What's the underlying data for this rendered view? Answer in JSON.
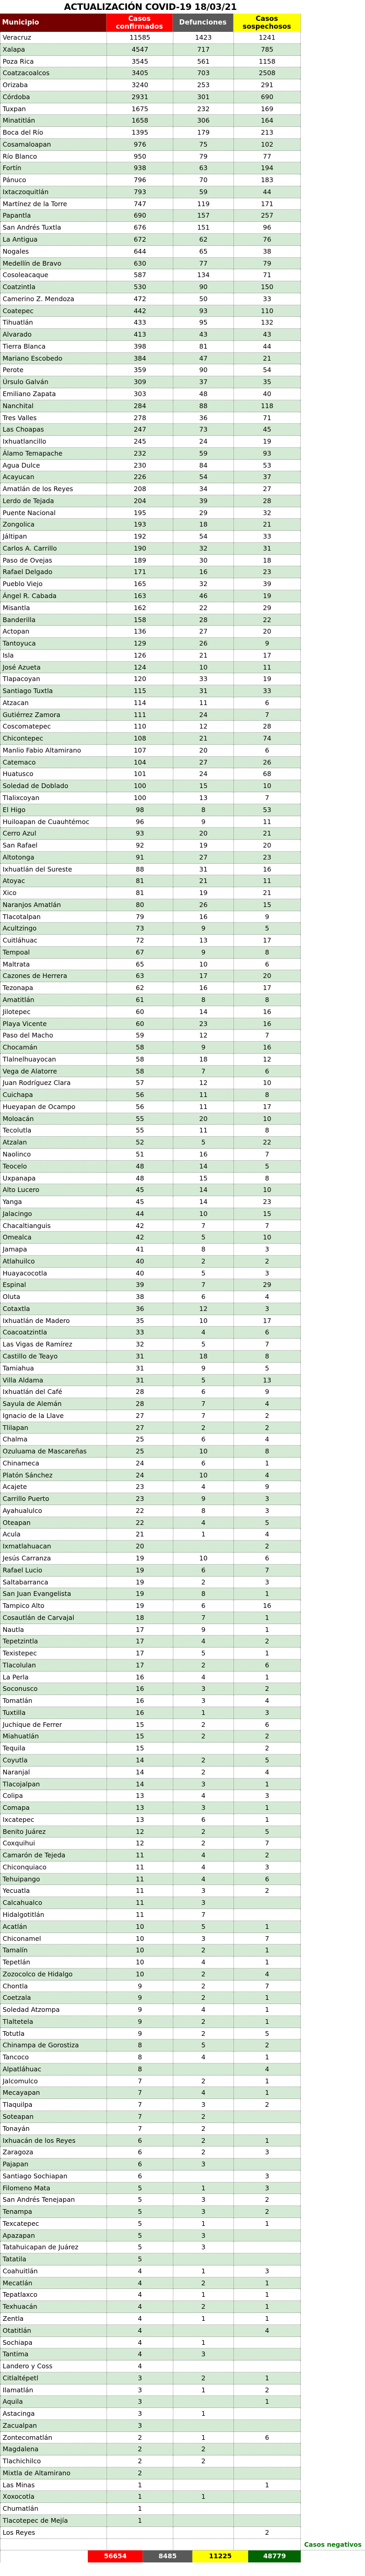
{
  "title": "ACTUALIZACIÓN COVID-19 18/03/21",
  "colors": {
    "municipio_header": "#760000",
    "confirmados": "#ff0000",
    "defunciones": "#595959",
    "sospechosos": "#ffff00",
    "negativos": "#006400",
    "row_alt": "#d5ead4"
  },
  "headers": {
    "municipio": "Municipio",
    "confirmados": "Casos confirmados",
    "defunciones": "Defunciones",
    "sospechosos": "Casos sospechosos"
  },
  "rows": [
    [
      "Veracruz",
      "11585",
      "1423",
      "1241"
    ],
    [
      "Xalapa",
      "4547",
      "717",
      "785"
    ],
    [
      "Poza Rica",
      "3545",
      "561",
      "1158"
    ],
    [
      "Coatzacoalcos",
      "3405",
      "703",
      "2508"
    ],
    [
      "Orizaba",
      "3240",
      "253",
      "291"
    ],
    [
      "Córdoba",
      "2931",
      "301",
      "690"
    ],
    [
      "Tuxpan",
      "1675",
      "232",
      "169"
    ],
    [
      "Minatitlán",
      "1658",
      "306",
      "164"
    ],
    [
      "Boca del Río",
      "1395",
      "179",
      "213"
    ],
    [
      "Cosamaloapan",
      "976",
      "75",
      "102"
    ],
    [
      "Río Blanco",
      "950",
      "79",
      "77"
    ],
    [
      "Fortín",
      "938",
      "63",
      "194"
    ],
    [
      "Pánuco",
      "796",
      "70",
      "183"
    ],
    [
      "Ixtaczoquitlán",
      "793",
      "59",
      "44"
    ],
    [
      "Martínez de la Torre",
      "747",
      "119",
      "171"
    ],
    [
      "Papantla",
      "690",
      "157",
      "257"
    ],
    [
      "San Andrés Tuxtla",
      "676",
      "151",
      "96"
    ],
    [
      "La Antigua",
      "672",
      "62",
      "76"
    ],
    [
      "Nogales",
      "644",
      "65",
      "38"
    ],
    [
      "Medellín de Bravo",
      "630",
      "77",
      "79"
    ],
    [
      "Cosoleacaque",
      "587",
      "134",
      "71"
    ],
    [
      "Coatzintla",
      "530",
      "90",
      "150"
    ],
    [
      "Camerino Z. Mendoza",
      "472",
      "50",
      "33"
    ],
    [
      "Coatepec",
      "442",
      "93",
      "110"
    ],
    [
      "Tihuatlán",
      "433",
      "95",
      "132"
    ],
    [
      "Alvarado",
      "413",
      "43",
      "43"
    ],
    [
      "Tierra Blanca",
      "398",
      "81",
      "44"
    ],
    [
      "Mariano Escobedo",
      "384",
      "47",
      "21"
    ],
    [
      "Perote",
      "359",
      "90",
      "54"
    ],
    [
      "Úrsulo Galván",
      "309",
      "37",
      "35"
    ],
    [
      "Emiliano Zapata",
      "303",
      "48",
      "40"
    ],
    [
      "Nanchital",
      "284",
      "88",
      "118"
    ],
    [
      "Tres Valles",
      "278",
      "36",
      "71"
    ],
    [
      "Las Choapas",
      "247",
      "73",
      "45"
    ],
    [
      "Ixhuatlancillo",
      "245",
      "24",
      "19"
    ],
    [
      "Álamo Temapache",
      "232",
      "59",
      "93"
    ],
    [
      "Agua Dulce",
      "230",
      "84",
      "53"
    ],
    [
      "Acayucan",
      "226",
      "54",
      "37"
    ],
    [
      "Amatlán de los Reyes",
      "208",
      "34",
      "27"
    ],
    [
      "Lerdo de Tejada",
      "204",
      "39",
      "28"
    ],
    [
      "Puente Nacional",
      "195",
      "29",
      "32"
    ],
    [
      "Zongolica",
      "193",
      "18",
      "21"
    ],
    [
      "Jáltipan",
      "192",
      "54",
      "33"
    ],
    [
      "Carlos A. Carrillo",
      "190",
      "32",
      "31"
    ],
    [
      "Paso de Ovejas",
      "189",
      "30",
      "18"
    ],
    [
      "Rafael Delgado",
      "171",
      "16",
      "23"
    ],
    [
      "Pueblo Viejo",
      "165",
      "32",
      "39"
    ],
    [
      "Ángel R. Cabada",
      "163",
      "46",
      "19"
    ],
    [
      "Misantla",
      "162",
      "22",
      "29"
    ],
    [
      "Banderilla",
      "158",
      "28",
      "22"
    ],
    [
      "Actopan",
      "136",
      "27",
      "20"
    ],
    [
      "Tantoyuca",
      "129",
      "26",
      "9"
    ],
    [
      "Isla",
      "126",
      "21",
      "17"
    ],
    [
      "José Azueta",
      "124",
      "10",
      "11"
    ],
    [
      "Tlapacoyan",
      "120",
      "33",
      "19"
    ],
    [
      "Santiago Tuxtla",
      "115",
      "31",
      "33"
    ],
    [
      "Atzacan",
      "114",
      "11",
      "6"
    ],
    [
      "Gutiérrez Zamora",
      "111",
      "24",
      "7"
    ],
    [
      "Coscomatepec",
      "110",
      "12",
      "28"
    ],
    [
      "Chicontepec",
      "108",
      "21",
      "74"
    ],
    [
      "Manlio Fabio Altamirano",
      "107",
      "20",
      "6"
    ],
    [
      "Catemaco",
      "104",
      "27",
      "26"
    ],
    [
      "Huatusco",
      "101",
      "24",
      "68"
    ],
    [
      "Soledad de Doblado",
      "100",
      "15",
      "10"
    ],
    [
      "Tlalixcoyan",
      "100",
      "13",
      "7"
    ],
    [
      "El Higo",
      "98",
      "8",
      "53"
    ],
    [
      "Huiloapan de Cuauhtémoc",
      "96",
      "9",
      "11"
    ],
    [
      "Cerro Azul",
      "93",
      "20",
      "21"
    ],
    [
      "San Rafael",
      "92",
      "19",
      "20"
    ],
    [
      "Altotonga",
      "91",
      "27",
      "23"
    ],
    [
      "Ixhuatlán del Sureste",
      "88",
      "31",
      "16"
    ],
    [
      "Atoyac",
      "81",
      "21",
      "11"
    ],
    [
      "Xico",
      "81",
      "19",
      "21"
    ],
    [
      "Naranjos Amatlán",
      "80",
      "26",
      "15"
    ],
    [
      "Tlacotalpan",
      "79",
      "16",
      "9"
    ],
    [
      "Acultzingo",
      "73",
      "9",
      "5"
    ],
    [
      "Cuitláhuac",
      "72",
      "13",
      "17"
    ],
    [
      "Tempoal",
      "67",
      "9",
      "8"
    ],
    [
      "Maltrata",
      "65",
      "10",
      "6"
    ],
    [
      "Cazones de Herrera",
      "63",
      "17",
      "20"
    ],
    [
      "Tezonapa",
      "62",
      "16",
      "17"
    ],
    [
      "Amatitlán",
      "61",
      "8",
      "8"
    ],
    [
      "Jilotepec",
      "60",
      "14",
      "16"
    ],
    [
      "Playa Vicente",
      "60",
      "23",
      "16"
    ],
    [
      "Paso del Macho",
      "59",
      "12",
      "7"
    ],
    [
      "Chocamán",
      "58",
      "9",
      "16"
    ],
    [
      "Tlalnelhuayocan",
      "58",
      "18",
      "12"
    ],
    [
      "Vega de Alatorre",
      "58",
      "7",
      "6"
    ],
    [
      "Juan Rodríguez Clara",
      "57",
      "12",
      "10"
    ],
    [
      "Cuichapa",
      "56",
      "11",
      "8"
    ],
    [
      "Hueyapan de Ocampo",
      "56",
      "11",
      "17"
    ],
    [
      "Moloacán",
      "55",
      "20",
      "10"
    ],
    [
      "Tecolutla",
      "55",
      "11",
      "8"
    ],
    [
      "Atzalan",
      "52",
      "5",
      "22"
    ],
    [
      "Naolinco",
      "51",
      "16",
      "7"
    ],
    [
      "Teocelo",
      "48",
      "14",
      "5"
    ],
    [
      "Uxpanapa",
      "48",
      "15",
      "8"
    ],
    [
      "Alto Lucero",
      "45",
      "14",
      "10"
    ],
    [
      "Yanga",
      "45",
      "14",
      "23"
    ],
    [
      "Jalacingo",
      "44",
      "10",
      "15"
    ],
    [
      "Chacaltianguis",
      "42",
      "7",
      "7"
    ],
    [
      "Omealca",
      "42",
      "5",
      "10"
    ],
    [
      "Jamapa",
      "41",
      "8",
      "3"
    ],
    [
      "Atlahuilco",
      "40",
      "2",
      "2"
    ],
    [
      "Huayacocotla",
      "40",
      "5",
      "3"
    ],
    [
      "Espinal",
      "39",
      "7",
      "29"
    ],
    [
      "Oluta",
      "38",
      "6",
      "4"
    ],
    [
      "Cotaxtla",
      "36",
      "12",
      "3"
    ],
    [
      "Ixhuatlán de Madero",
      "35",
      "10",
      "17"
    ],
    [
      "Coacoatzintla",
      "33",
      "4",
      "6"
    ],
    [
      "Las Vigas de Ramírez",
      "32",
      "5",
      "7"
    ],
    [
      "Castillo de Teayo",
      "31",
      "18",
      "8"
    ],
    [
      "Tamiahua",
      "31",
      "9",
      "5"
    ],
    [
      "Villa Aldama",
      "31",
      "5",
      "13"
    ],
    [
      "Ixhuatlán del Café",
      "28",
      "6",
      "9"
    ],
    [
      "Sayula de Alemán",
      "28",
      "7",
      "4"
    ],
    [
      "Ignacio de la Llave",
      "27",
      "7",
      "2"
    ],
    [
      "Tlilapan",
      "27",
      "2",
      "2"
    ],
    [
      "Chalma",
      "25",
      "6",
      "4"
    ],
    [
      "Ozuluama de Mascareñas",
      "25",
      "10",
      "8"
    ],
    [
      "Chinameca",
      "24",
      "6",
      "1"
    ],
    [
      "Platón Sánchez",
      "24",
      "10",
      "4"
    ],
    [
      "Acajete",
      "23",
      "4",
      "9"
    ],
    [
      "Carrillo Puerto",
      "23",
      "9",
      "3"
    ],
    [
      "Ayahualulco",
      "22",
      "8",
      "3"
    ],
    [
      "Oteapan",
      "22",
      "4",
      "5"
    ],
    [
      "Acula",
      "21",
      "1",
      "4"
    ],
    [
      "Ixmatlahuacan",
      "20",
      "",
      "2"
    ],
    [
      "Jesús Carranza",
      "19",
      "10",
      "6"
    ],
    [
      "Rafael Lucio",
      "19",
      "6",
      "7"
    ],
    [
      "Saltabarranca",
      "19",
      "2",
      "3"
    ],
    [
      "San Juan Evangelista",
      "19",
      "8",
      "1"
    ],
    [
      "Tampico Alto",
      "19",
      "6",
      "16"
    ],
    [
      "Cosautlán de Carvajal",
      "18",
      "7",
      "1"
    ],
    [
      "Nautla",
      "17",
      "9",
      "1"
    ],
    [
      "Tepetzintla",
      "17",
      "4",
      "2"
    ],
    [
      "Texistepec",
      "17",
      "5",
      "1"
    ],
    [
      "Tlacolulan",
      "17",
      "2",
      "6"
    ],
    [
      "La Perla",
      "16",
      "4",
      "1"
    ],
    [
      "Soconusco",
      "16",
      "3",
      "2"
    ],
    [
      "Tomatlán",
      "16",
      "3",
      "4"
    ],
    [
      "Tuxtilla",
      "16",
      "1",
      "3"
    ],
    [
      "Juchique de Ferrer",
      "15",
      "2",
      "6"
    ],
    [
      "Miahuatlán",
      "15",
      "2",
      "2"
    ],
    [
      "Tequila",
      "15",
      "",
      "2"
    ],
    [
      "Coyutla",
      "14",
      "2",
      "5"
    ],
    [
      "Naranjal",
      "14",
      "2",
      "4"
    ],
    [
      "Tlacojalpan",
      "14",
      "3",
      "1"
    ],
    [
      "Colipa",
      "13",
      "4",
      "3"
    ],
    [
      "Comapa",
      "13",
      "3",
      "1"
    ],
    [
      "Ixcatepec",
      "13",
      "6",
      "1"
    ],
    [
      "Benito Juárez",
      "12",
      "2",
      "5"
    ],
    [
      "Coxquihui",
      "12",
      "2",
      "7"
    ],
    [
      "Camarón de Tejeda",
      "11",
      "4",
      "2"
    ],
    [
      "Chiconquiaco",
      "11",
      "4",
      "3"
    ],
    [
      "Tehuipango",
      "11",
      "4",
      "6"
    ],
    [
      "Yecuatla",
      "11",
      "3",
      "2"
    ],
    [
      "Calcahualco",
      "11",
      "3",
      ""
    ],
    [
      "Hidalgotitlán",
      "11",
      "7",
      ""
    ],
    [
      "Acatlán",
      "10",
      "5",
      "1"
    ],
    [
      "Chiconamel",
      "10",
      "3",
      "7"
    ],
    [
      "Tamalín",
      "10",
      "2",
      "1"
    ],
    [
      "Tepetlán",
      "10",
      "4",
      "1"
    ],
    [
      "Zozocolco de Hidalgo",
      "10",
      "2",
      "4"
    ],
    [
      "Chontla",
      "9",
      "2",
      "7"
    ],
    [
      "Coetzala",
      "9",
      "2",
      "1"
    ],
    [
      "Soledad Atzompa",
      "9",
      "4",
      "1"
    ],
    [
      "Tlaltetela",
      "9",
      "2",
      "1"
    ],
    [
      "Totutla",
      "9",
      "2",
      "5"
    ],
    [
      "Chinampa de Gorostiza",
      "8",
      "5",
      "2"
    ],
    [
      "Tancoco",
      "8",
      "4",
      "1"
    ],
    [
      "Alpatláhuac",
      "8",
      "",
      "4"
    ],
    [
      "Jalcomulco",
      "7",
      "2",
      "1"
    ],
    [
      "Mecayapan",
      "7",
      "4",
      "1"
    ],
    [
      "Tlaquilpa",
      "7",
      "3",
      "2"
    ],
    [
      "Soteapan",
      "7",
      "2",
      ""
    ],
    [
      "Tonayán",
      "7",
      "2",
      ""
    ],
    [
      "Ixhuacán de los Reyes",
      "6",
      "2",
      "1"
    ],
    [
      "Zaragoza",
      "6",
      "2",
      "3"
    ],
    [
      "Pajapan",
      "6",
      "3",
      ""
    ],
    [
      "Santiago Sochiapan",
      "6",
      "",
      "3"
    ],
    [
      "Filomeno Mata",
      "5",
      "1",
      "3"
    ],
    [
      "San Andrés Tenejapan",
      "5",
      "3",
      "2"
    ],
    [
      "Tenampa",
      "5",
      "3",
      "2"
    ],
    [
      "Texcatepec",
      "5",
      "1",
      "1"
    ],
    [
      "Apazapan",
      "5",
      "3",
      ""
    ],
    [
      "Tatahuicapan de Juárez",
      "5",
      "3",
      ""
    ],
    [
      "Tatatila",
      "5",
      "",
      ""
    ],
    [
      "Coahuitlán",
      "4",
      "1",
      "3"
    ],
    [
      "Mecatlán",
      "4",
      "2",
      "1"
    ],
    [
      "Tepatlaxco",
      "4",
      "1",
      "1"
    ],
    [
      "Texhuacán",
      "4",
      "2",
      "1"
    ],
    [
      "Zentla",
      "4",
      "1",
      "1"
    ],
    [
      "Otatitlán",
      "4",
      "",
      "4"
    ],
    [
      "Sochiapa",
      "4",
      "1",
      ""
    ],
    [
      "Tantima",
      "4",
      "3",
      ""
    ],
    [
      "Landero y Coss",
      "4",
      "",
      ""
    ],
    [
      "Citlaltépetl",
      "3",
      "2",
      "1"
    ],
    [
      "Ilamatlán",
      "3",
      "1",
      "2"
    ],
    [
      "Aquila",
      "3",
      "",
      "1"
    ],
    [
      "Astacinga",
      "3",
      "1",
      ""
    ],
    [
      "Zacualpan",
      "3",
      "",
      ""
    ],
    [
      "Zontecomatlán",
      "2",
      "1",
      "6"
    ],
    [
      "Magdalena",
      "2",
      "2",
      ""
    ],
    [
      "Tlachichilco",
      "2",
      "2",
      ""
    ],
    [
      "Mixtla de Altamirano",
      "2",
      "",
      ""
    ],
    [
      "Las Minas",
      "1",
      "",
      "1"
    ],
    [
      "Xoxocotla",
      "1",
      "1",
      ""
    ],
    [
      "Chumatlán",
      "1",
      "",
      ""
    ],
    [
      "Tlacotepec de Mejía",
      "1",
      "",
      ""
    ],
    [
      "Los Reyes",
      "",
      "",
      "2"
    ]
  ],
  "totals": {
    "negativos_label": "Casos negativos",
    "confirmados": "56654",
    "defunciones": "8485",
    "sospechosos": "11225",
    "negativos": "48779"
  }
}
